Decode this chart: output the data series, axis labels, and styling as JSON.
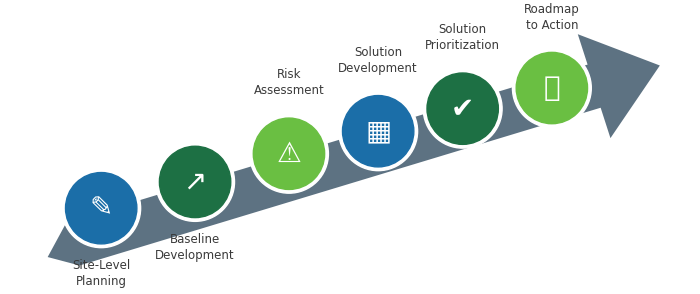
{
  "background_color": "#ffffff",
  "arrow_color": "#5d7282",
  "labels": [
    "Site-Level\nPlanning",
    "Baseline\nDevelopment",
    "Risk\nAssessment",
    "Solution\nDevelopment",
    "Solution\nPrioritization",
    "Roadmap\nto Action"
  ],
  "label_above": [
    false,
    false,
    true,
    true,
    true,
    true
  ],
  "circle_colors": [
    "#1b6ea8",
    "#1d7044",
    "#6abf42",
    "#1b6ea8",
    "#1d7044",
    "#6abf42"
  ],
  "n_circles": 6,
  "text_color": "#3a3a3a",
  "font_size": 8.5,
  "icon_chars": [
    "✎",
    "↗",
    "⚠",
    "▦",
    "✔",
    "⦿"
  ]
}
